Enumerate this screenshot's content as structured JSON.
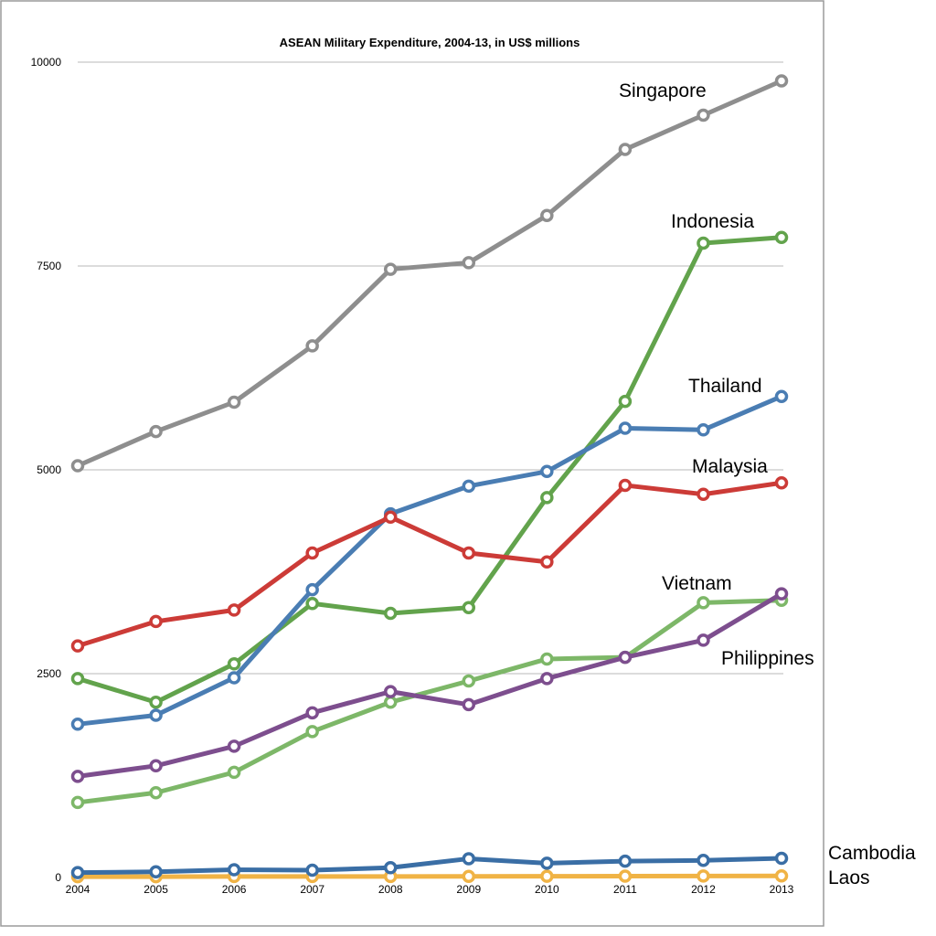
{
  "chart_data": {
    "type": "line",
    "title": "ASEAN Military Expenditure, 2004-13, in US$ millions",
    "xlabel": "",
    "ylabel": "",
    "x": [
      "2004",
      "2005",
      "2006",
      "2007",
      "2008",
      "2009",
      "2010",
      "2011",
      "2012",
      "2013"
    ],
    "ylim": [
      0,
      10000
    ],
    "yticks": [
      "0",
      "2500",
      "5000",
      "7500",
      "10000"
    ],
    "ytick_values": [
      0,
      2500,
      5000,
      7500,
      10000
    ],
    "grid": true,
    "legend": "labels at right end of lines",
    "series": [
      {
        "name": "Singapore",
        "color": "#8e8e8e",
        "values": [
          5050,
          5470,
          5830,
          6520,
          7460,
          7540,
          8120,
          8930,
          9350,
          9770
        ]
      },
      {
        "name": "Indonesia",
        "color": "#62a34c",
        "values": [
          2440,
          2150,
          2620,
          3360,
          3240,
          3310,
          4660,
          5840,
          7780,
          7850
        ]
      },
      {
        "name": "Thailand",
        "color": "#4a7db3",
        "values": [
          1880,
          1990,
          2450,
          3530,
          4460,
          4800,
          4980,
          5510,
          5490,
          5900
        ]
      },
      {
        "name": "Malaysia",
        "color": "#cc3b37",
        "values": [
          2840,
          3140,
          3280,
          3980,
          4420,
          3980,
          3870,
          4810,
          4700,
          4840
        ]
      },
      {
        "name": "Vietnam",
        "color": "#7db768",
        "values": [
          920,
          1040,
          1290,
          1790,
          2150,
          2410,
          2680,
          2700,
          3370,
          3400
        ]
      },
      {
        "name": "Philippines",
        "color": "#7d4e8e",
        "values": [
          1240,
          1370,
          1610,
          2020,
          2280,
          2120,
          2440,
          2700,
          2910,
          3480
        ]
      },
      {
        "name": "Cambodia",
        "color": "#3a6ea5",
        "values": [
          60,
          70,
          95,
          90,
          120,
          230,
          175,
          200,
          210,
          235
        ]
      },
      {
        "name": "Laos",
        "color": "#f0b345",
        "values": [
          10,
          10,
          12,
          12,
          12,
          14,
          15,
          17,
          18,
          20
        ]
      }
    ]
  }
}
